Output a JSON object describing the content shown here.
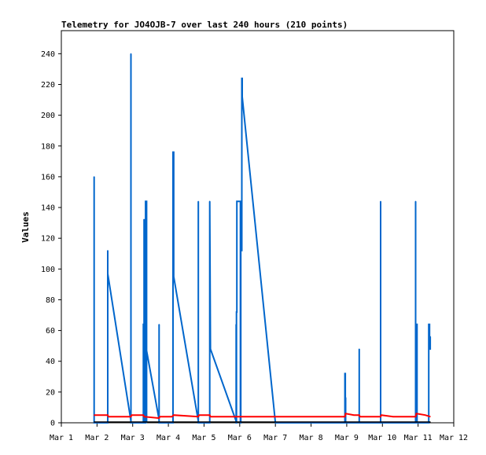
{
  "chart_data": {
    "type": "line",
    "title": "Telemetry for JO4OJB-7 over last 240 hours (210 points)",
    "xlabel": "",
    "ylabel": "Values",
    "x_tick_labels": [
      "Mar 1",
      "Mar 2",
      "Mar 3",
      "Mar 4",
      "Mar 5",
      "Mar 6",
      "Mar 7",
      "Mar 8",
      "Mar 9",
      "Mar 10",
      "Mar 11",
      "Mar 12"
    ],
    "y_tick_labels": [
      "0",
      "20",
      "40",
      "60",
      "80",
      "100",
      "120",
      "140",
      "160",
      "180",
      "200",
      "220",
      "240"
    ],
    "xlim": [
      1,
      12
    ],
    "ylim": [
      0,
      255
    ],
    "grid": false,
    "series": [
      {
        "color": "#0066cc",
        "x": [
          1.92,
          1.92,
          1.92,
          2.3,
          2.3,
          2.3,
          2.95,
          2.95,
          2.95,
          3.3,
          3.3,
          3.32,
          3.32,
          3.34,
          3.34,
          3.36,
          3.36,
          3.39,
          3.39,
          3.38,
          3.38,
          3.74,
          3.74,
          3.74,
          4.13,
          4.13,
          4.15,
          4.15,
          4.84,
          4.84,
          4.84,
          5.16,
          5.16,
          5.16,
          5.18,
          5.18,
          5.9,
          5.9,
          5.9,
          5.91,
          5.91,
          5.92,
          5.92,
          6.02,
          6.02,
          6.03,
          6.03,
          6.05,
          6.05,
          6.06,
          6.06,
          6.07,
          6.07,
          7.0,
          7.0,
          8.95,
          8.95,
          8.96,
          8.96,
          8.97,
          8.97,
          9.35,
          9.35,
          9.35,
          9.95,
          9.95,
          9.95,
          10.93,
          10.93,
          10.93,
          10.95,
          10.95,
          10.97,
          10.97,
          11.3,
          11.3,
          11.32,
          11.32,
          11.34,
          11.34,
          11.34
        ],
        "y": [
          0,
          160,
          0,
          0,
          112,
          97,
          1,
          240,
          0,
          0,
          64,
          64,
          132,
          132,
          0,
          0,
          144,
          144,
          0,
          48,
          48,
          2,
          64,
          0,
          0,
          176,
          176,
          95,
          1,
          144,
          0,
          0,
          144,
          144,
          48,
          48,
          1,
          64,
          0,
          0,
          72,
          72,
          144,
          144,
          0,
          0,
          128,
          128,
          112,
          112,
          224,
          224,
          212,
          0,
          0,
          0,
          32,
          32,
          16,
          16,
          0,
          0,
          48,
          0,
          0,
          144,
          0,
          0,
          144,
          0,
          0,
          64,
          64,
          0,
          0,
          64,
          64,
          48,
          48,
          56,
          56
        ]
      },
      {
        "color": "#ff0000",
        "x": [
          1.92,
          2.3,
          2.32,
          2.95,
          2.97,
          3.3,
          3.32,
          3.74,
          3.76,
          4.1,
          4.15,
          4.84,
          4.86,
          5.16,
          5.18,
          5.9,
          5.92,
          6.02,
          6.05,
          7.0,
          8.95,
          8.97,
          9.2,
          9.35,
          9.37,
          9.95,
          9.97,
          10.3,
          10.93,
          10.95,
          11.2,
          11.34
        ],
        "y": [
          5,
          5,
          4,
          4,
          5,
          5,
          4,
          3,
          4,
          4,
          5,
          4,
          5,
          5,
          4,
          4,
          4,
          4,
          4,
          4,
          4,
          6,
          5,
          5,
          4,
          4,
          5,
          4,
          4,
          6,
          5,
          4
        ]
      },
      {
        "color": "#000000",
        "x": [
          1.92,
          11.34
        ],
        "y": [
          0.5,
          0.5
        ]
      }
    ]
  }
}
